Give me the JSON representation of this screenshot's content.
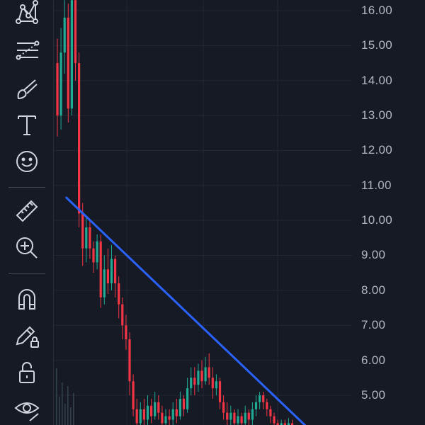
{
  "colors": {
    "background": "#161a25",
    "grid": "#232733",
    "up_candle": "#22ab94",
    "down_candle": "#f23645",
    "trendline": "#2962ff",
    "icon": "#d1d4dc",
    "axis_text": "#b2b5be"
  },
  "toolbar": {
    "items": [
      {
        "name": "pattern-tool",
        "icon": "xabcd-pattern-icon"
      },
      {
        "name": "prediction-tool",
        "icon": "fib-levels-icon"
      },
      {
        "name": "brush-tool",
        "icon": "brush-icon"
      },
      {
        "name": "text-tool",
        "icon": "text-T-icon"
      },
      {
        "name": "emoji-tool",
        "icon": "smiley-icon"
      },
      {
        "name": "measure-tool",
        "icon": "ruler-icon"
      },
      {
        "name": "zoom-in-tool",
        "icon": "zoom-in-icon"
      },
      {
        "name": "magnet-tool",
        "icon": "magnet-icon"
      },
      {
        "name": "lock-drawings-tool",
        "icon": "pencil-lock-icon"
      },
      {
        "name": "lock-all-tool",
        "icon": "unlock-icon"
      },
      {
        "name": "hide-drawings-tool",
        "icon": "eye-icon"
      }
    ]
  },
  "price_axis": {
    "labels": [
      "16.00",
      "15.00",
      "14.00",
      "13.00",
      "12.00",
      "11.00",
      "10.00",
      "9.00",
      "8.00",
      "7.00",
      "6.00",
      "5.00"
    ]
  },
  "chart_data": {
    "type": "candlestick",
    "y_range": [
      3.9,
      16.3
    ],
    "trendline": {
      "from": {
        "candle": 2.5,
        "price": 10.65
      },
      "to": {
        "candle": 70,
        "price": 4.0
      }
    },
    "candles": [
      [
        14.5,
        13.0,
        15.2,
        12.4
      ],
      [
        13.0,
        14.8,
        15.5,
        12.6
      ],
      [
        14.8,
        15.8,
        16.3,
        14.2
      ],
      [
        15.8,
        13.2,
        16.2,
        12.8
      ],
      [
        13.2,
        16.3,
        16.3,
        13.0
      ],
      [
        16.3,
        14.5,
        16.3,
        14.0
      ],
      [
        14.5,
        10.2,
        14.8,
        9.8
      ],
      [
        10.2,
        9.2,
        10.5,
        8.7
      ],
      [
        9.2,
        9.8,
        10.1,
        8.8
      ],
      [
        9.8,
        9.2,
        10.0,
        8.9
      ],
      [
        9.2,
        8.8,
        9.4,
        8.5
      ],
      [
        8.8,
        9.4,
        9.6,
        8.6
      ],
      [
        9.4,
        7.8,
        9.6,
        7.5
      ],
      [
        7.8,
        8.6,
        9.0,
        7.6
      ],
      [
        8.6,
        8.2,
        9.2,
        7.9
      ],
      [
        8.2,
        8.9,
        9.3,
        8.0
      ],
      [
        8.9,
        8.2,
        9.0,
        7.8
      ],
      [
        8.2,
        7.6,
        8.4,
        7.2
      ],
      [
        7.6,
        7.0,
        7.8,
        6.6
      ],
      [
        7.0,
        6.6,
        7.3,
        6.3
      ],
      [
        6.6,
        5.4,
        6.8,
        5.0
      ],
      [
        5.4,
        4.6,
        5.6,
        4.4
      ],
      [
        4.6,
        4.2,
        4.9,
        4.0
      ],
      [
        4.2,
        4.6,
        4.8,
        4.0
      ],
      [
        4.6,
        4.3,
        4.9,
        4.1
      ],
      [
        4.3,
        4.7,
        5.0,
        4.1
      ],
      [
        4.7,
        4.4,
        4.9,
        4.2
      ],
      [
        4.4,
        4.8,
        5.1,
        4.3
      ],
      [
        4.8,
        4.5,
        5.0,
        4.3
      ],
      [
        4.5,
        4.2,
        4.7,
        4.0
      ],
      [
        4.2,
        4.4,
        4.6,
        4.0
      ],
      [
        4.4,
        4.3,
        4.6,
        4.1
      ],
      [
        4.3,
        4.6,
        4.8,
        4.1
      ],
      [
        4.6,
        4.4,
        4.9,
        4.2
      ],
      [
        4.4,
        4.9,
        5.1,
        4.3
      ],
      [
        4.9,
        4.6,
        5.0,
        4.4
      ],
      [
        4.6,
        5.2,
        5.5,
        4.5
      ],
      [
        5.2,
        5.5,
        5.8,
        5.0
      ],
      [
        5.5,
        5.3,
        5.8,
        5.0
      ],
      [
        5.3,
        5.7,
        5.9,
        5.1
      ],
      [
        5.7,
        5.4,
        6.0,
        5.2
      ],
      [
        5.4,
        5.8,
        6.1,
        5.3
      ],
      [
        5.8,
        5.5,
        6.2,
        5.3
      ],
      [
        5.5,
        5.2,
        5.8,
        4.9
      ],
      [
        5.2,
        5.4,
        5.6,
        5.0
      ],
      [
        5.4,
        4.8,
        5.5,
        4.6
      ],
      [
        4.8,
        4.5,
        5.0,
        4.3
      ],
      [
        4.5,
        4.3,
        4.8,
        4.1
      ],
      [
        4.3,
        4.5,
        4.7,
        4.1
      ],
      [
        4.5,
        4.2,
        4.6,
        4.0
      ],
      [
        4.2,
        4.4,
        4.6,
        4.0
      ],
      [
        4.4,
        4.2,
        4.5,
        4.0
      ],
      [
        4.2,
        4.5,
        4.7,
        4.0
      ],
      [
        4.5,
        4.3,
        4.6,
        4.1
      ],
      [
        4.3,
        4.6,
        4.8,
        4.1
      ],
      [
        4.6,
        4.8,
        5.0,
        4.4
      ],
      [
        4.8,
        5.0,
        5.1,
        4.6
      ],
      [
        5.0,
        4.8,
        5.1,
        4.6
      ],
      [
        4.8,
        4.6,
        4.9,
        4.4
      ],
      [
        4.6,
        4.4,
        4.7,
        4.2
      ],
      [
        4.4,
        4.2,
        4.5,
        4.0
      ],
      [
        4.2,
        4.1,
        4.3,
        3.95
      ],
      [
        4.1,
        4.2,
        4.3,
        3.95
      ],
      [
        4.2,
        4.1,
        4.3,
        3.95
      ],
      [
        4.1,
        4.2,
        4.35,
        4.0
      ],
      [
        4.2,
        4.15,
        4.3,
        4.0
      ]
    ]
  }
}
